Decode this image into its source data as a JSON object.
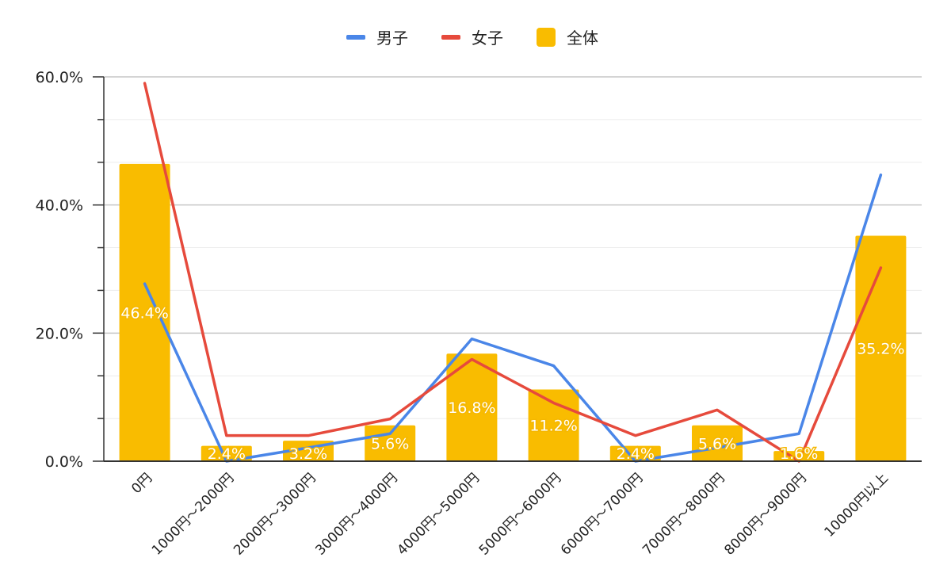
{
  "chart_data": {
    "type": "bar",
    "title": "",
    "xlabel": "",
    "ylabel": "",
    "categories": [
      "0円",
      "1000円～2000円",
      "2000円～3000円",
      "3000円～4000円",
      "4000円～5000円",
      "5000円～6000円",
      "6000円～7000円",
      "7000円～8000円",
      "8000円～9000円",
      "10000円以上"
    ],
    "bar_series": {
      "name": "全体",
      "color": "#f9bc00",
      "values": [
        46.4,
        2.4,
        3.2,
        5.6,
        16.8,
        11.2,
        2.4,
        5.6,
        1.6,
        35.2
      ],
      "labels": [
        "46.4%",
        "2.4%",
        "3.2%",
        "5.6%",
        "16.8%",
        "11.2%",
        "2.4%",
        "5.6%",
        "1.6%",
        "35.2%"
      ]
    },
    "line_series": [
      {
        "name": "男子",
        "color": "#4a86e8",
        "values": [
          27.7,
          0,
          2.1,
          4.3,
          19.1,
          14.9,
          0,
          2.1,
          4.3,
          44.7
        ]
      },
      {
        "name": "女子",
        "color": "#e64a3c",
        "values": [
          59.0,
          4.0,
          4.0,
          6.6,
          15.9,
          9.1,
          4.0,
          8.0,
          0,
          30.2
        ]
      }
    ],
    "ylim": [
      0,
      60
    ],
    "yticks": [
      0,
      20,
      40,
      60
    ],
    "ytick_labels": [
      "0.0%",
      "20.0%",
      "40.0%",
      "60.0%"
    ],
    "minor_step": 6.667,
    "legend": {
      "position": "top-center",
      "items": [
        "男子",
        "女子",
        "全体"
      ]
    },
    "grid": true
  }
}
